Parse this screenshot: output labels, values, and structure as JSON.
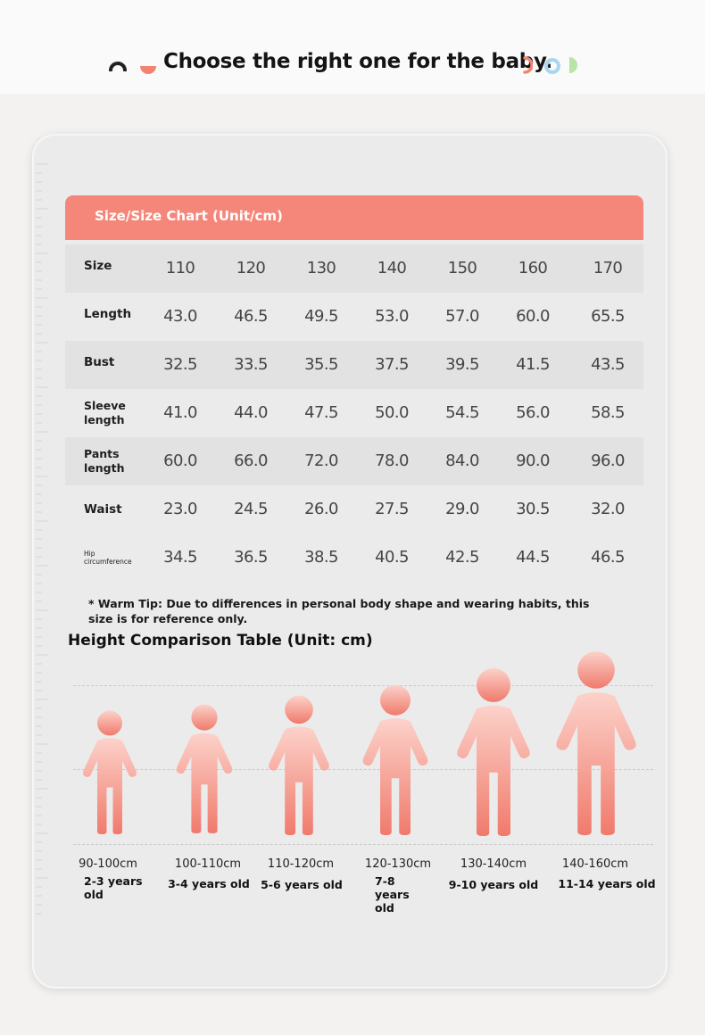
{
  "headline": "Choose the right one for the baby.",
  "table": {
    "title": "Size/Size Chart (Unit/cm)",
    "header_label": "Size",
    "sizes": [
      "110",
      "120",
      "130",
      "140",
      "150",
      "160",
      "170"
    ],
    "rows": [
      {
        "label": "Length",
        "values": [
          "43.0",
          "46.5",
          "49.5",
          "53.0",
          "57.0",
          "60.0",
          "65.5"
        ]
      },
      {
        "label": "Bust",
        "values": [
          "32.5",
          "33.5",
          "35.5",
          "37.5",
          "39.5",
          "41.5",
          "43.5"
        ]
      },
      {
        "label": "Sleeve length",
        "values": [
          "41.0",
          "44.0",
          "47.5",
          "50.0",
          "54.5",
          "56.0",
          "58.5"
        ]
      },
      {
        "label": "Pants length",
        "values": [
          "60.0",
          "66.0",
          "72.0",
          "78.0",
          "84.0",
          "90.0",
          "96.0"
        ]
      },
      {
        "label": "Waist",
        "values": [
          "23.0",
          "24.5",
          "26.0",
          "27.5",
          "29.0",
          "30.5",
          "32.0"
        ]
      },
      {
        "label": "Hip circumference",
        "values": [
          "34.5",
          "36.5",
          "38.5",
          "40.5",
          "42.5",
          "44.5",
          "46.5"
        ]
      }
    ]
  },
  "tip": "* Warm Tip: Due to differences in personal body shape and wearing habits, this size is for reference only.",
  "height_table": {
    "title": "Height Comparison Table (Unit: cm)",
    "items": [
      {
        "range": "90-100cm",
        "age": "2-3 years old"
      },
      {
        "range": "100-110cm",
        "age": "3-4 years old"
      },
      {
        "range": "110-120cm",
        "age": "5-6 years old"
      },
      {
        "range": "120-130cm",
        "age": "7-8 years old"
      },
      {
        "range": "130-140cm",
        "age": "9-10 years old"
      },
      {
        "range": "140-160cm",
        "age": "11-14 years old"
      }
    ]
  },
  "colors": {
    "accent": "#f5877a",
    "figure_top": "#fcd2ca",
    "figure_bottom": "#f07a6c",
    "decor_dark": "#222222",
    "decor_orange": "#f2836f",
    "decor_blue": "#a9d6ef",
    "decor_green": "#b9e3a7"
  },
  "icons": [
    "arch-icon",
    "bowl-icon",
    "crescent-icon",
    "ring-icon",
    "half-circle-icon"
  ]
}
